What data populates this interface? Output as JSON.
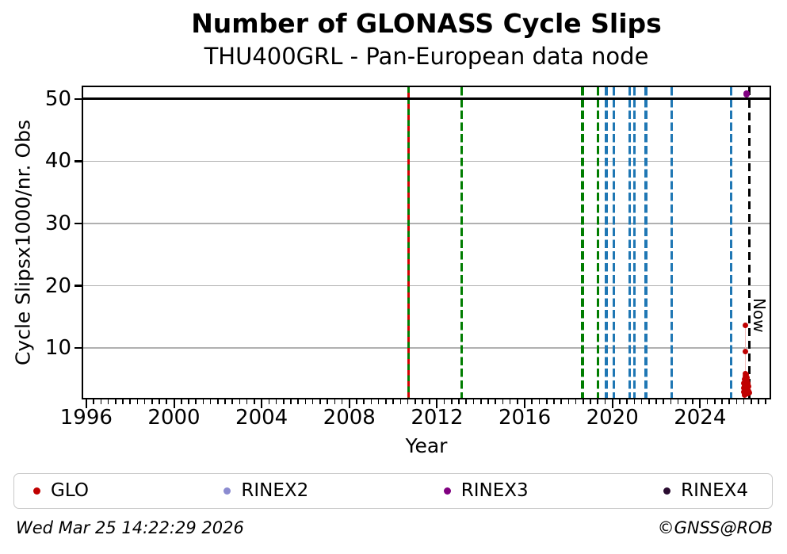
{
  "header": {
    "title": "Number of GLONASS Cycle Slips",
    "subtitle": "THU400GRL - Pan-European data node"
  },
  "footer": {
    "timestamp": "Wed Mar 25 14:22:29 2026",
    "credit": "©GNSS@ROB"
  },
  "legend": [
    {
      "label": "GLO",
      "color": "#c00000"
    },
    {
      "label": "RINEX2",
      "color": "#8b8bd0"
    },
    {
      "label": "RINEX3",
      "color": "#800080"
    },
    {
      "label": "RINEX4",
      "color": "#2a0c30"
    }
  ],
  "chart_data": {
    "type": "scatter",
    "title": "Number of GLONASS Cycle Slips",
    "subtitle": "THU400GRL - Pan-European data node",
    "xlabel": "Year",
    "ylabel": "Cycle Slipsx1000/nr. Obs",
    "xlim": [
      1995.86,
      2027.17
    ],
    "ylim": [
      2.0,
      51.9
    ],
    "xticks": [
      1996,
      2000,
      2004,
      2008,
      2012,
      2016,
      2020,
      2024
    ],
    "x_minor_step_years": 0.3333,
    "yticks": [
      10,
      20,
      30,
      40,
      50
    ],
    "grid": "horizontal-only",
    "grid_color": "#b0b0b0",
    "max_line": {
      "y": 50,
      "color": "#000000"
    },
    "event_lines": [
      {
        "year": 2010.71,
        "color": "#007d00",
        "style": "solid"
      },
      {
        "year": 2010.71,
        "color": "#d40000",
        "style": "sparse-dash"
      },
      {
        "year": 2013.12,
        "color": "#007d00",
        "style": "dash"
      },
      {
        "year": 2018.64,
        "color": "#007d00",
        "style": "dash"
      },
      {
        "year": 2019.34,
        "color": "#007d00",
        "style": "dash"
      },
      {
        "year": 2019.72,
        "color": "#1f77b4",
        "style": "dash"
      },
      {
        "year": 2020.08,
        "color": "#1f77b4",
        "style": "dash"
      },
      {
        "year": 2020.78,
        "color": "#1f77b4",
        "style": "dash"
      },
      {
        "year": 2021.02,
        "color": "#1f77b4",
        "style": "dash"
      },
      {
        "year": 2021.53,
        "color": "#1f77b4",
        "style": "dash"
      },
      {
        "year": 2022.71,
        "color": "#1f77b4",
        "style": "dash"
      },
      {
        "year": 2025.42,
        "color": "#1f77b4",
        "style": "dash"
      }
    ],
    "now_line": {
      "year": 2026.26,
      "label": "Now",
      "color": "#000000",
      "style": "dash"
    },
    "connector": {
      "x": 2026.07,
      "y1": 13.7,
      "y2": 2.8,
      "color": "#f2bcbc"
    },
    "series": [
      {
        "name": "GLO",
        "color": "#c00000",
        "marker_px": 7,
        "points": [
          [
            2026.06,
            13.7
          ],
          [
            2026.06,
            9.5
          ],
          [
            2025.98,
            2.9
          ],
          [
            2026.0,
            3.6
          ],
          [
            2026.01,
            4.3
          ],
          [
            2026.02,
            2.6
          ],
          [
            2026.03,
            5.0
          ],
          [
            2026.03,
            3.2
          ],
          [
            2026.04,
            4.0
          ],
          [
            2026.04,
            2.5
          ],
          [
            2026.05,
            5.5
          ],
          [
            2026.05,
            3.7
          ],
          [
            2026.06,
            2.8
          ],
          [
            2026.06,
            4.6
          ],
          [
            2026.07,
            3.3
          ],
          [
            2026.07,
            5.9
          ],
          [
            2026.08,
            2.6
          ],
          [
            2026.08,
            4.1
          ],
          [
            2026.09,
            3.5
          ],
          [
            2026.09,
            5.2
          ],
          [
            2026.1,
            2.9
          ],
          [
            2026.1,
            4.4
          ],
          [
            2026.11,
            3.1
          ],
          [
            2026.11,
            5.7
          ],
          [
            2026.12,
            2.7
          ],
          [
            2026.12,
            4.0
          ],
          [
            2026.13,
            3.4
          ],
          [
            2026.13,
            4.9
          ],
          [
            2026.14,
            2.8
          ],
          [
            2026.15,
            3.7
          ],
          [
            2026.15,
            5.3
          ],
          [
            2026.16,
            3.0
          ],
          [
            2026.17,
            4.3
          ],
          [
            2026.18,
            3.3
          ],
          [
            2026.19,
            2.7
          ],
          [
            2026.2,
            3.9
          ],
          [
            2026.22,
            3.1
          ],
          [
            2026.24,
            2.8
          ]
        ]
      },
      {
        "name": "RINEX3",
        "color": "#800080",
        "marker_px": 8.5,
        "points": [
          [
            2026.12,
            50.8
          ]
        ]
      }
    ]
  }
}
